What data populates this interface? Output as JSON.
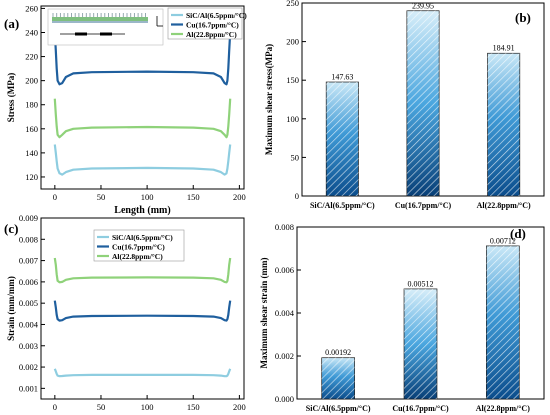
{
  "chart_data": [
    {
      "panel": "(a)",
      "type": "line",
      "xlabel": "Length (mm)",
      "ylabel": "Stress (MPa)",
      "xlim": [
        -15,
        205
      ],
      "ylim": [
        110,
        262
      ],
      "xticks": [
        "0",
        "50",
        "100",
        "150",
        "200"
      ],
      "yticks": [
        "120",
        "140",
        "160",
        "180",
        "200",
        "220",
        "240",
        "260"
      ],
      "grid": false,
      "legend": "top-right",
      "series": [
        {
          "name": "SiC/Al(6.5ppm/°C)",
          "color": "#8ecde0",
          "x": [
            0,
            1,
            2,
            3,
            5,
            8,
            12,
            20,
            40,
            100,
            150,
            172,
            180,
            184,
            186,
            187,
            188,
            189,
            190
          ],
          "y": [
            147,
            140,
            133,
            127,
            123,
            122,
            124,
            126,
            127,
            127.5,
            127,
            126,
            124,
            122,
            123,
            127,
            133,
            140,
            147
          ]
        },
        {
          "name": "Cu(16.7ppm/°C)",
          "color": "#1f5f9e",
          "x": [
            0,
            1,
            2,
            3,
            5,
            8,
            12,
            20,
            40,
            100,
            150,
            172,
            180,
            184,
            186,
            187,
            188,
            189,
            190
          ],
          "y": [
            240,
            225,
            210,
            200,
            197,
            198,
            203,
            206,
            207,
            207.5,
            207,
            206,
            203,
            198,
            197,
            200,
            210,
            225,
            240
          ]
        },
        {
          "name": "Al(22.8ppm/°C)",
          "color": "#8fd27a",
          "x": [
            0,
            1,
            2,
            3,
            5,
            8,
            12,
            20,
            40,
            100,
            150,
            172,
            180,
            184,
            186,
            187,
            188,
            189,
            190
          ],
          "y": [
            185,
            172,
            162,
            155,
            153,
            155,
            158,
            160,
            161,
            161.5,
            161,
            160,
            158,
            155,
            153,
            155,
            162,
            172,
            185
          ]
        }
      ]
    },
    {
      "panel": "(b)",
      "type": "bar",
      "xlabel": "",
      "ylabel": "Maximum shear stress(MPa)",
      "ylim": [
        0,
        250
      ],
      "yticks": [
        "0",
        "50",
        "100",
        "150",
        "200",
        "250"
      ],
      "categories": [
        "SiC/Al(6.5ppm/°C)",
        "Cu(16.7ppm/°C)",
        "Al(22.8ppm/°C)"
      ],
      "values": [
        147.63,
        239.95,
        184.91
      ],
      "data_labels": [
        "147.63",
        "239.95",
        "184.91"
      ]
    },
    {
      "panel": "(c)",
      "type": "line",
      "xlabel": "Length (mm)",
      "ylabel": "Strain (mm/mm)",
      "xlim": [
        -15,
        205
      ],
      "ylim": [
        0.0005,
        0.009
      ],
      "xticks": [
        "0",
        "50",
        "100",
        "150",
        "200"
      ],
      "yticks": [
        "0.001",
        "0.002",
        "0.003",
        "0.004",
        "0.005",
        "0.006",
        "0.007",
        "0.008",
        "0.009"
      ],
      "grid": false,
      "legend": "top-center",
      "series": [
        {
          "name": "SiC/Al(6.5ppm/°C)",
          "color": "#8ecde0",
          "x": [
            0,
            1,
            2,
            3,
            5,
            8,
            12,
            20,
            40,
            100,
            150,
            172,
            180,
            184,
            186,
            187,
            188,
            189,
            190
          ],
          "y": [
            0.00192,
            0.0018,
            0.00168,
            0.0016,
            0.00157,
            0.00158,
            0.0016,
            0.00162,
            0.00163,
            0.00163,
            0.00163,
            0.00162,
            0.0016,
            0.00157,
            0.00157,
            0.0016,
            0.00168,
            0.0018,
            0.00192
          ]
        },
        {
          "name": "Cu(16.7ppm/°C)",
          "color": "#1f5f9e",
          "x": [
            0,
            1,
            2,
            3,
            5,
            8,
            12,
            20,
            40,
            100,
            150,
            172,
            180,
            184,
            186,
            187,
            188,
            189,
            190
          ],
          "y": [
            0.00512,
            0.0048,
            0.00445,
            0.00425,
            0.00418,
            0.0042,
            0.0043,
            0.00437,
            0.0044,
            0.00441,
            0.0044,
            0.00437,
            0.0043,
            0.0042,
            0.00418,
            0.00425,
            0.00445,
            0.0048,
            0.00512
          ]
        },
        {
          "name": "Al(22.8ppm/°C)",
          "color": "#8fd27a",
          "x": [
            0,
            1,
            2,
            3,
            5,
            8,
            12,
            20,
            40,
            100,
            150,
            172,
            180,
            184,
            186,
            187,
            188,
            189,
            190
          ],
          "y": [
            0.00712,
            0.0068,
            0.00635,
            0.00605,
            0.00598,
            0.006,
            0.0061,
            0.00617,
            0.0062,
            0.00621,
            0.0062,
            0.00617,
            0.0061,
            0.006,
            0.00598,
            0.00605,
            0.00635,
            0.0068,
            0.00712
          ]
        }
      ]
    },
    {
      "panel": "(d)",
      "type": "bar",
      "xlabel": "",
      "ylabel": "Maximum shear strain (mm)",
      "ylim": [
        0,
        0.008
      ],
      "yticks": [
        "0.000",
        "0.002",
        "0.004",
        "0.006",
        "0.008"
      ],
      "categories": [
        "SiC/Al(6.5ppm/°C)",
        "Cu(16.7ppm/°C)",
        "Al(22.8ppm/°C)"
      ],
      "values": [
        0.00192,
        0.00512,
        0.00712
      ],
      "data_labels": [
        "0.00192",
        "0.00512",
        "0.00712"
      ]
    }
  ]
}
